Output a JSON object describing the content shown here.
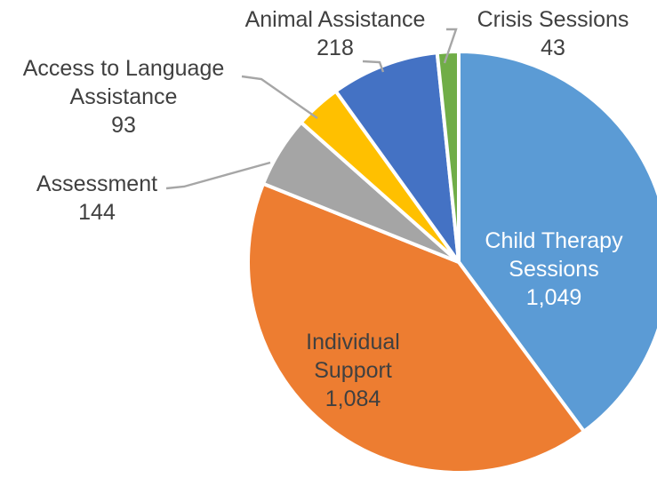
{
  "chart_data": {
    "type": "pie",
    "title": "",
    "legend": "none",
    "start_angle_deg": 0,
    "direction": "clockwise",
    "categories": [
      "Child Therapy Sessions",
      "Individual Support",
      "Assessment",
      "Access to Language Assistance",
      "Animal Assistance",
      "Crisis Sessions"
    ],
    "values": [
      1049,
      1084,
      144,
      93,
      218,
      43
    ],
    "value_labels": [
      "1,049",
      "1,084",
      "144",
      "93",
      "218",
      "43"
    ],
    "colors": [
      "#5b9bd5",
      "#ed7d31",
      "#a5a5a5",
      "#ffc000",
      "#4472c4",
      "#70ad47"
    ],
    "label_colors": [
      "#ffffff",
      "#404040",
      "#404040",
      "#404040",
      "#404040",
      "#404040"
    ],
    "label_lines": [
      [
        "Child Therapy",
        "Sessions",
        "1,049"
      ],
      [
        "Individual",
        "Support",
        "1,084"
      ],
      [
        "Assessment",
        "144"
      ],
      [
        "Access to Language",
        "Assistance",
        "93"
      ],
      [
        "Animal Assistance",
        "218"
      ],
      [
        "Crisis Sessions",
        "43"
      ]
    ]
  }
}
